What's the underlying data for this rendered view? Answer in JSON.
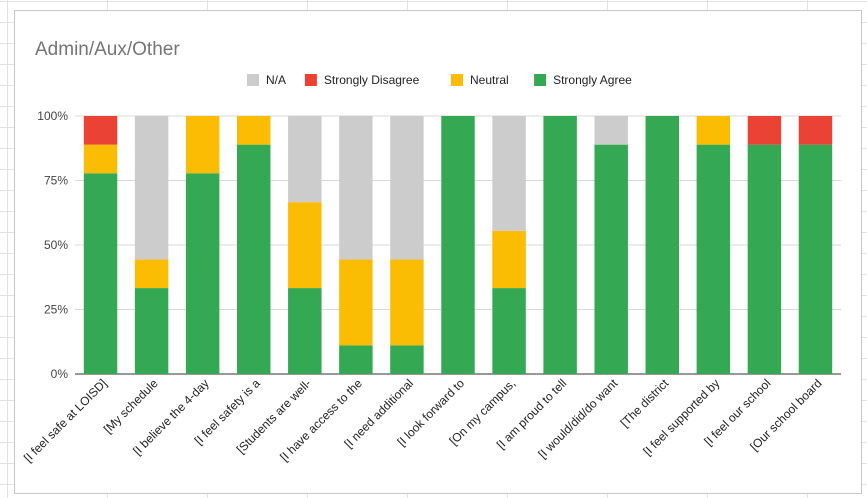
{
  "chart_data": {
    "type": "bar",
    "stacked": "percent",
    "title": "Admin/Aux/Other",
    "xlabel": "",
    "ylabel": "",
    "ylim": [
      0,
      100
    ],
    "ytick_labels": [
      "0%",
      "25%",
      "50%",
      "75%",
      "100%"
    ],
    "legend_position": "top",
    "grid": true,
    "categories": [
      "[I feel safe at LOISD]",
      "[My schedule",
      "[I believe the 4-day",
      "[I feel safety is a",
      "[Students are well-",
      "[I have access to the",
      "[I need additional",
      "[I look forward to",
      "[On my campus,",
      "[I am proud to tell",
      "[I would/did/do want",
      "[The district",
      "[I feel supported by",
      "[I feel our school",
      "[Our school board"
    ],
    "series": [
      {
        "name": "Strongly Agree",
        "color": "#34a853",
        "values": [
          77.8,
          33.3,
          77.8,
          88.9,
          33.3,
          11.1,
          11.1,
          100,
          33.3,
          100,
          88.9,
          100,
          88.9,
          88.9,
          88.9
        ]
      },
      {
        "name": "Neutral",
        "color": "#fbbc04",
        "values": [
          11.1,
          11.1,
          22.2,
          11.1,
          33.3,
          33.3,
          33.3,
          0,
          22.2,
          0,
          0,
          0,
          11.1,
          0,
          0
        ]
      },
      {
        "name": "Strongly Disagree",
        "color": "#ea4335",
        "values": [
          11.1,
          0,
          0,
          0,
          0,
          0,
          0,
          0,
          0,
          0,
          0,
          0,
          0,
          11.1,
          11.1
        ]
      },
      {
        "name": "N/A",
        "color": "#cccccc",
        "values": [
          0,
          55.6,
          0,
          0,
          33.4,
          55.6,
          55.6,
          0,
          44.5,
          0,
          11.1,
          0,
          0,
          0,
          0
        ]
      }
    ],
    "legend_order": [
      "N/A",
      "Strongly Disagree",
      "Neutral",
      "Strongly Agree"
    ]
  }
}
